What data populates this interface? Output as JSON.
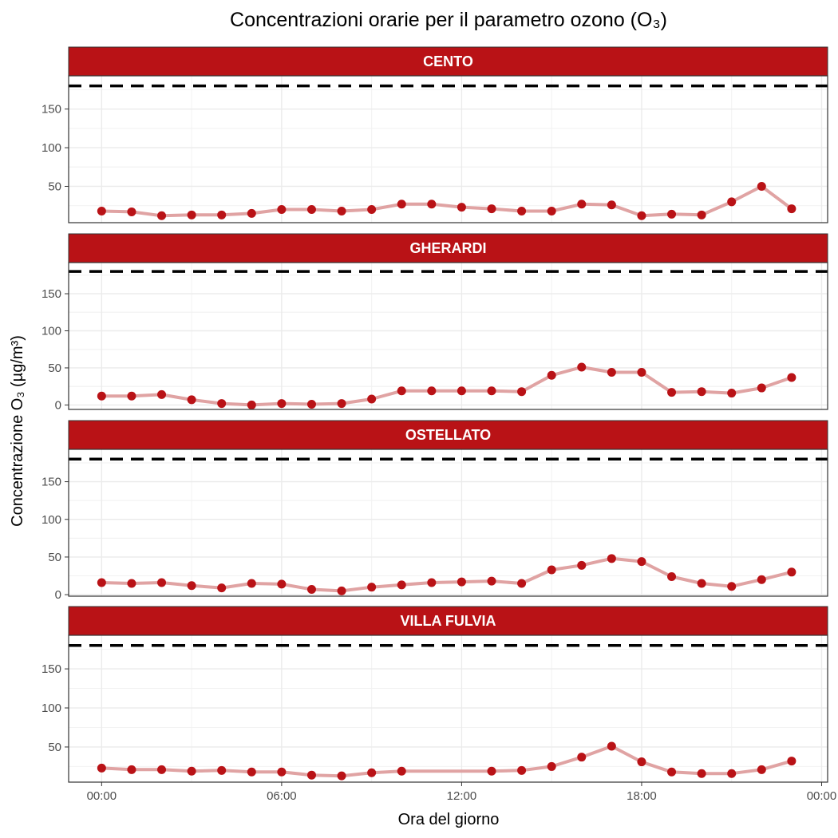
{
  "chart_data": {
    "type": "line",
    "title": "Concentrazioni orarie per il parametro ozono (O₃)",
    "xlabel": "Ora del giorno",
    "ylabel": "Concentrazione O₃ (µg/m³)",
    "x_ticks": [
      {
        "label": "00:00",
        "hour": 0
      },
      {
        "label": "06:00",
        "hour": 6
      },
      {
        "label": "12:00",
        "hour": 12
      },
      {
        "label": "18:00",
        "hour": 18
      },
      {
        "label": "00:00",
        "hour": 24
      }
    ],
    "xlim": [
      -1.1,
      24.2
    ],
    "threshold": 180,
    "grid": true,
    "colors": {
      "strip": "#b91216",
      "point": "#b91216",
      "line": "#e0a3a3",
      "threshold": "#000000"
    },
    "panels": [
      {
        "name": "CENTO",
        "ylim": [
          3,
          193
        ],
        "y_ticks": [
          50,
          100,
          150
        ],
        "hours": [
          0,
          1,
          2,
          3,
          4,
          5,
          6,
          7,
          8,
          9,
          10,
          11,
          12,
          13,
          14,
          15,
          16,
          17,
          18,
          19,
          20,
          21,
          22,
          23
        ],
        "values": [
          18,
          17,
          12,
          13,
          13,
          15,
          20,
          20,
          18,
          20,
          27,
          27,
          23,
          21,
          18,
          18,
          27,
          26,
          12,
          14,
          13,
          30,
          50,
          21
        ]
      },
      {
        "name": "GHERARDI",
        "ylim": [
          -6,
          192
        ],
        "y_ticks": [
          0,
          50,
          100,
          150
        ],
        "hours": [
          0,
          1,
          2,
          3,
          4,
          5,
          6,
          7,
          8,
          9,
          10,
          11,
          12,
          13,
          14,
          15,
          16,
          17,
          18,
          19,
          20,
          21,
          22,
          23
        ],
        "values": [
          12,
          12,
          14,
          7,
          2,
          0,
          2,
          1,
          2,
          8,
          19,
          19,
          19,
          19,
          18,
          40,
          51,
          44,
          44,
          17,
          18,
          16,
          23,
          37
        ]
      },
      {
        "name": "OSTELLATO",
        "ylim": [
          -2,
          193
        ],
        "y_ticks": [
          0,
          50,
          100,
          150
        ],
        "hours": [
          0,
          1,
          2,
          3,
          4,
          5,
          6,
          7,
          8,
          9,
          10,
          11,
          12,
          13,
          14,
          15,
          16,
          17,
          18,
          19,
          20,
          21,
          22,
          23
        ],
        "values": [
          16,
          15,
          16,
          12,
          9,
          15,
          14,
          7,
          5,
          10,
          13,
          16,
          17,
          18,
          15,
          33,
          39,
          48,
          44,
          24,
          15,
          11,
          20,
          30
        ]
      },
      {
        "name": "VILLA FULVIA",
        "ylim": [
          5,
          193
        ],
        "y_ticks": [
          50,
          100,
          150
        ],
        "hours": [
          0,
          1,
          2,
          3,
          4,
          5,
          6,
          7,
          8,
          9,
          10,
          13,
          14,
          15,
          16,
          17,
          18,
          19,
          20,
          21,
          22,
          23
        ],
        "values": [
          23,
          21,
          21,
          19,
          20,
          18,
          18,
          14,
          13,
          17,
          19,
          19,
          20,
          25,
          37,
          51,
          31,
          18,
          16,
          16,
          21,
          32
        ]
      }
    ]
  }
}
